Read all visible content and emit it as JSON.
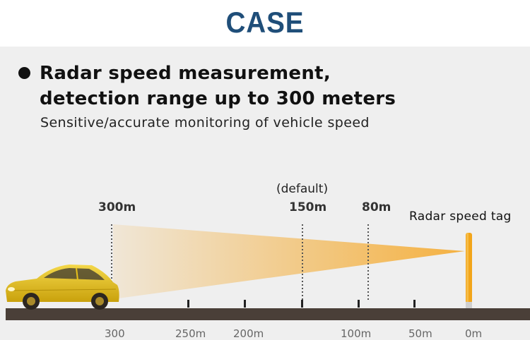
{
  "header": {
    "title": "CASE"
  },
  "feature": {
    "headline_line1": "Radar speed measurement,",
    "headline_line2": "detection range up to 300 meters",
    "subtitle": "Sensitive/accurate monitoring of vehicle speed"
  },
  "diagram": {
    "top_markers": {
      "m300": "300m",
      "m150": "150m",
      "m150_note": "(default)",
      "m80": "80m"
    },
    "device_label": "Radar speed tag",
    "bottom_scale": {
      "s300": "300",
      "s250": "250m",
      "s200": "200m",
      "s100": "100m",
      "s50": "50m",
      "s0": "0m"
    },
    "colors": {
      "beam": "#f5a623",
      "car": "#e8c21a",
      "road": "#4a3f38",
      "radar_pole": "#f2a51a"
    }
  }
}
